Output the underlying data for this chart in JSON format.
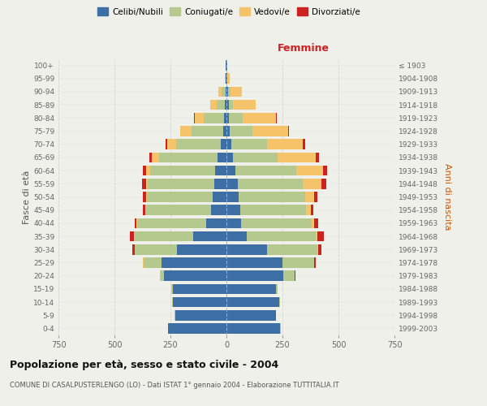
{
  "age_groups": [
    "0-4",
    "5-9",
    "10-14",
    "15-19",
    "20-24",
    "25-29",
    "30-34",
    "35-39",
    "40-44",
    "45-49",
    "50-54",
    "55-59",
    "60-64",
    "65-69",
    "70-74",
    "75-79",
    "80-84",
    "85-89",
    "90-94",
    "95-99",
    "100+"
  ],
  "birth_years": [
    "1999-2003",
    "1994-1998",
    "1989-1993",
    "1984-1988",
    "1979-1983",
    "1974-1978",
    "1969-1973",
    "1964-1968",
    "1959-1963",
    "1954-1958",
    "1949-1953",
    "1944-1948",
    "1939-1943",
    "1934-1938",
    "1929-1933",
    "1924-1928",
    "1919-1923",
    "1914-1918",
    "1909-1913",
    "1904-1908",
    "≤ 1903"
  ],
  "male": {
    "single": [
      260,
      230,
      240,
      240,
      280,
      290,
      220,
      150,
      90,
      70,
      60,
      55,
      50,
      40,
      25,
      15,
      12,
      8,
      5,
      2,
      2
    ],
    "married": [
      2,
      2,
      2,
      5,
      15,
      80,
      190,
      260,
      310,
      290,
      295,
      295,
      290,
      260,
      200,
      140,
      90,
      35,
      15,
      3,
      1
    ],
    "widowed": [
      0,
      0,
      0,
      0,
      1,
      2,
      1,
      2,
      2,
      3,
      5,
      10,
      20,
      35,
      40,
      50,
      40,
      30,
      15,
      3,
      1
    ],
    "divorced": [
      0,
      0,
      0,
      0,
      1,
      3,
      8,
      18,
      8,
      12,
      15,
      18,
      15,
      10,
      5,
      2,
      2,
      1,
      1,
      0,
      0
    ]
  },
  "female": {
    "single": [
      240,
      220,
      235,
      220,
      255,
      250,
      180,
      90,
      65,
      60,
      55,
      50,
      40,
      30,
      22,
      15,
      12,
      10,
      8,
      3,
      2
    ],
    "married": [
      2,
      2,
      3,
      10,
      50,
      140,
      225,
      310,
      315,
      295,
      295,
      290,
      270,
      200,
      160,
      100,
      60,
      20,
      10,
      2,
      0
    ],
    "widowed": [
      0,
      0,
      0,
      0,
      1,
      3,
      3,
      5,
      10,
      20,
      40,
      85,
      120,
      170,
      160,
      160,
      150,
      100,
      50,
      10,
      3
    ],
    "divorced": [
      0,
      0,
      0,
      0,
      2,
      5,
      15,
      30,
      20,
      12,
      15,
      20,
      18,
      12,
      10,
      5,
      3,
      2,
      1,
      0,
      0
    ]
  },
  "colors": {
    "single": "#3d6fa5",
    "married": "#b5c98e",
    "widowed": "#f5c46a",
    "divorced": "#cc2222"
  },
  "xlim": 750,
  "title": "Popolazione per età, sesso e stato civile - 2004",
  "subtitle": "COMUNE DI CASALPUSTERLENGO (LO) - Dati ISTAT 1° gennaio 2004 - Elaborazione TUTTITALIA.IT",
  "ylabel_left": "Fasce di età",
  "ylabel_right": "Anni di nascita",
  "xlabel_female": "Femmine",
  "bg_color": "#f0f0eb",
  "grid_color": "#cccccc"
}
